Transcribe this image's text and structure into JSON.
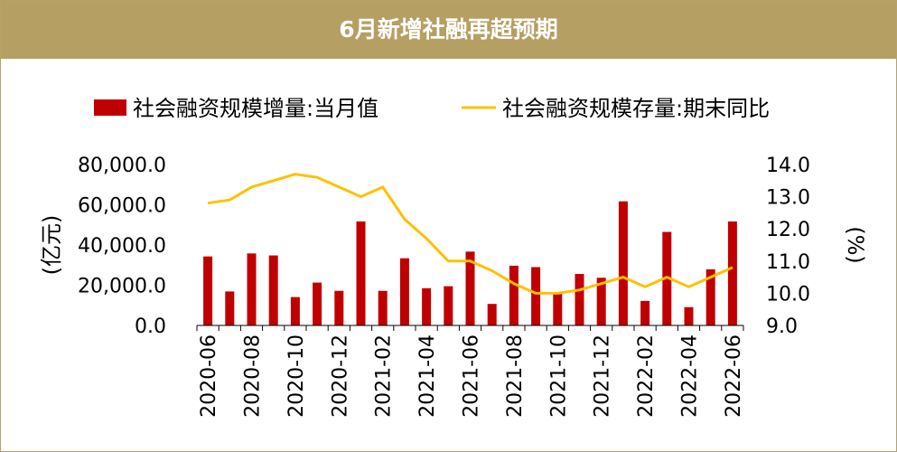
{
  "title": "6月新增社融再超预期",
  "chart_data": {
    "type": "bar+line",
    "legend_position": "top",
    "colors": {
      "bar": "#c00000",
      "line": "#ffc000",
      "header": "#b59f63"
    },
    "categories": [
      "2020-06",
      "2020-07",
      "2020-08",
      "2020-09",
      "2020-10",
      "2020-11",
      "2020-12",
      "2021-01",
      "2021-02",
      "2021-03",
      "2021-04",
      "2021-05",
      "2021-06",
      "2021-07",
      "2021-08",
      "2021-09",
      "2021-10",
      "2021-11",
      "2021-12",
      "2022-01",
      "2022-02",
      "2022-03",
      "2022-04",
      "2022-05",
      "2022-06"
    ],
    "x_tick_labels": [
      "2020-06",
      "2020-08",
      "2020-10",
      "2020-12",
      "2021-02",
      "2021-04",
      "2021-06",
      "2021-08",
      "2021-10",
      "2021-12",
      "2022-02",
      "2022-04",
      "2022-06"
    ],
    "series": [
      {
        "name": "社会融资规模增量:当月值",
        "type": "bar",
        "axis": "left",
        "values": [
          34300,
          16900,
          35800,
          34800,
          14100,
          21300,
          17200,
          51700,
          17200,
          33400,
          18500,
          19500,
          36700,
          10700,
          29700,
          29000,
          16200,
          25600,
          23700,
          61700,
          12200,
          46500,
          9100,
          27900,
          51700
        ]
      },
      {
        "name": "社会融资规模存量:期末同比",
        "type": "line",
        "axis": "right",
        "values": [
          12.8,
          12.9,
          13.3,
          13.5,
          13.7,
          13.6,
          13.3,
          13.0,
          13.3,
          12.3,
          11.7,
          11.0,
          11.0,
          10.7,
          10.3,
          10.0,
          10.0,
          10.1,
          10.3,
          10.5,
          10.2,
          10.5,
          10.2,
          10.5,
          10.8
        ]
      }
    ],
    "y_left": {
      "label": "(亿元)",
      "min": 0,
      "max": 80000,
      "ticks": [
        "0.0",
        "20,000.0",
        "40,000.0",
        "60,000.0",
        "80,000.0"
      ]
    },
    "y_right": {
      "label": "(%)",
      "min": 9.0,
      "max": 14.0,
      "ticks": [
        "9.0",
        "10.0",
        "11.0",
        "12.0",
        "13.0",
        "14.0"
      ]
    }
  }
}
